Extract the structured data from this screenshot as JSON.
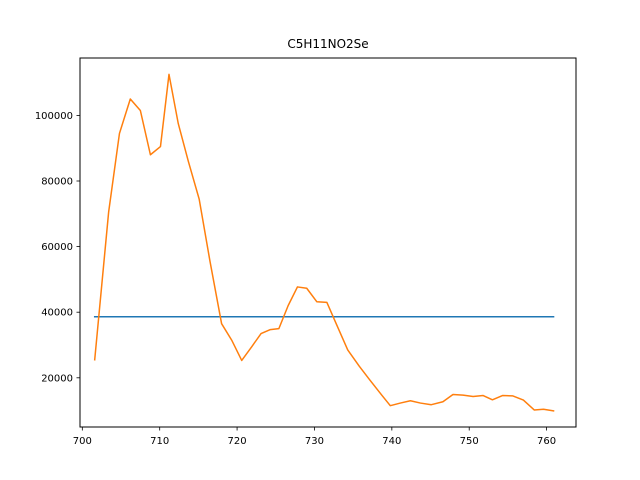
{
  "chart_data": {
    "type": "line",
    "title": "C5H11NO2Se",
    "xlabel": "",
    "ylabel": "",
    "xlim": [
      699.7,
      763.8
    ],
    "ylim": [
      5000,
      117500
    ],
    "x_ticks": [
      700,
      710,
      720,
      730,
      740,
      750,
      760
    ],
    "y_ticks": [
      20000,
      40000,
      60000,
      80000,
      100000
    ],
    "grid": false,
    "legend": "none",
    "series": [
      {
        "color": "#1f77b4",
        "points": [
          [
            701.6,
            38600
          ],
          [
            760.9,
            38600
          ]
        ]
      },
      {
        "color": "#ff7f0e",
        "points": [
          [
            701.6,
            25500
          ],
          [
            703.4,
            70500
          ],
          [
            704.8,
            94500
          ],
          [
            706.2,
            105000
          ],
          [
            707.5,
            101500
          ],
          [
            708.8,
            88000
          ],
          [
            710.1,
            90500
          ],
          [
            711.2,
            112500
          ],
          [
            712.4,
            97500
          ],
          [
            713.7,
            86000
          ],
          [
            715.1,
            74500
          ],
          [
            716.5,
            55500
          ],
          [
            718.0,
            36500
          ],
          [
            719.3,
            31500
          ],
          [
            720.6,
            25300
          ],
          [
            721.9,
            29500
          ],
          [
            723.1,
            33500
          ],
          [
            724.3,
            34700
          ],
          [
            725.4,
            35000
          ],
          [
            726.6,
            42000
          ],
          [
            727.8,
            47700
          ],
          [
            729.0,
            47300
          ],
          [
            730.3,
            43200
          ],
          [
            731.6,
            43000
          ],
          [
            732.9,
            36000
          ],
          [
            734.3,
            28500
          ],
          [
            735.8,
            23500
          ],
          [
            737.1,
            19500
          ],
          [
            738.5,
            15300
          ],
          [
            739.8,
            11500
          ],
          [
            741.1,
            12300
          ],
          [
            742.4,
            13000
          ],
          [
            743.7,
            12300
          ],
          [
            745.1,
            11800
          ],
          [
            746.6,
            12700
          ],
          [
            747.9,
            14900
          ],
          [
            749.2,
            14700
          ],
          [
            750.5,
            14300
          ],
          [
            751.8,
            14600
          ],
          [
            753.0,
            13300
          ],
          [
            754.3,
            14600
          ],
          [
            755.6,
            14500
          ],
          [
            757.0,
            13200
          ],
          [
            758.4,
            10200
          ],
          [
            759.6,
            10400
          ],
          [
            760.9,
            9900
          ]
        ]
      }
    ]
  }
}
